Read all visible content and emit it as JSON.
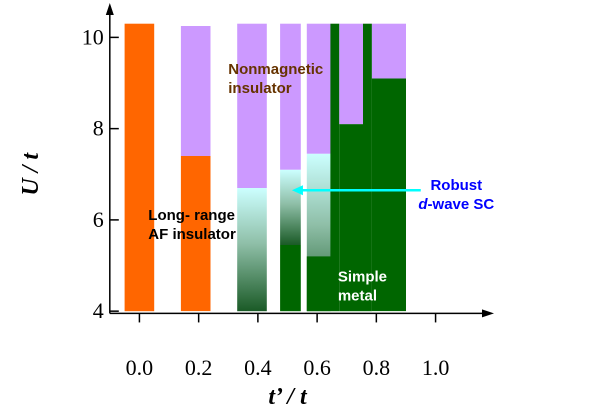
{
  "chart_data": {
    "type": "bar",
    "title": "",
    "xlabel": "t’ / t",
    "ylabel": "U / t",
    "xlim": [
      -0.15,
      1.15
    ],
    "ylim": [
      3.85,
      10.6
    ],
    "xticks": [
      0.0,
      0.2,
      0.4,
      0.6,
      0.8,
      1.0
    ],
    "xtick_labels": [
      "0.0",
      "0.2",
      "0.4",
      "0.6",
      "0.8",
      "1.0"
    ],
    "yticks": [
      4,
      6,
      8,
      10
    ],
    "ytick_labels": [
      "4",
      "6",
      "8",
      "10"
    ],
    "grid": false,
    "phases": {
      "af": {
        "name": "Long- range AF insulator",
        "color": "#ff6600"
      },
      "nm": {
        "name": "Nonmagnetic insulator",
        "color": "#cc99ff"
      },
      "sc": {
        "name": "Robust d-wave SC",
        "color": "#006600"
      },
      "metal": {
        "name": "Simple metal",
        "color": "#006600"
      }
    },
    "columns": [
      {
        "x": [
          -0.05,
          0.05
        ],
        "segments": [
          {
            "phase": "af",
            "from": 4.0,
            "to": 10.3
          }
        ]
      },
      {
        "x": [
          0.14,
          0.24
        ],
        "segments": [
          {
            "phase": "af",
            "from": 4.0,
            "to": 7.4
          },
          {
            "phase": "nm",
            "from": 7.4,
            "to": 10.25
          }
        ]
      },
      {
        "x": [
          0.33,
          0.43
        ],
        "segments": [
          {
            "phase": "sc",
            "from": 4.0,
            "to": 6.7,
            "gradient": true
          },
          {
            "phase": "nm",
            "from": 6.7,
            "to": 10.3
          }
        ]
      },
      {
        "x": [
          0.475,
          0.545
        ],
        "segments": [
          {
            "phase": "metal",
            "from": 4.0,
            "to": 5.45
          },
          {
            "phase": "sc",
            "from": 5.45,
            "to": 7.1,
            "gradient": true
          },
          {
            "phase": "nm",
            "from": 7.1,
            "to": 10.3
          }
        ]
      },
      {
        "x": [
          0.565,
          0.645
        ],
        "segments": [
          {
            "phase": "sc",
            "from": 4.0,
            "to": 7.45,
            "gradient": true
          },
          {
            "phase": "nm",
            "from": 7.45,
            "to": 10.3
          }
        ]
      },
      {
        "x": [
          0.565,
          0.645
        ],
        "segments": [
          {
            "phase": "metal",
            "from": 4.0,
            "to": 5.2
          }
        ]
      },
      {
        "x": [
          0.645,
          0.675
        ],
        "segments": [
          {
            "phase": "metal",
            "from": 4.0,
            "to": 10.3
          }
        ]
      },
      {
        "x": [
          0.675,
          0.755
        ],
        "segments": [
          {
            "phase": "metal",
            "from": 4.0,
            "to": 8.1
          },
          {
            "phase": "nm",
            "from": 8.1,
            "to": 10.3
          }
        ]
      },
      {
        "x": [
          0.755,
          0.785
        ],
        "segments": [
          {
            "phase": "metal",
            "from": 4.0,
            "to": 10.3
          }
        ]
      },
      {
        "x": [
          0.785,
          0.9
        ],
        "segments": [
          {
            "phase": "metal",
            "from": 4.0,
            "to": 9.1
          },
          {
            "phase": "nm",
            "from": 9.1,
            "to": 10.3
          }
        ]
      }
    ],
    "labels": [
      {
        "id": "nm",
        "lines": [
          "Nonmagnetic",
          "insulator"
        ],
        "color": "#663300",
        "x": 0.3,
        "y": 9.2
      },
      {
        "id": "af",
        "lines": [
          "Long- range",
          "AF insulator"
        ],
        "color": "#000000",
        "x": 0.03,
        "y": 6.0
      },
      {
        "id": "metal",
        "lines": [
          "Simple",
          "metal"
        ],
        "color": "#ffffff",
        "x": 0.67,
        "y": 4.65
      },
      {
        "id": "sc",
        "lines": [
          "Robust",
          "d-wave SC"
        ],
        "color": "#0000ff",
        "x": 1.07,
        "y": 6.65
      }
    ],
    "annotations": [
      {
        "type": "arrow",
        "from": [
          0.95,
          6.65
        ],
        "to": [
          0.515,
          6.65
        ],
        "color": "#00ffff"
      }
    ]
  }
}
